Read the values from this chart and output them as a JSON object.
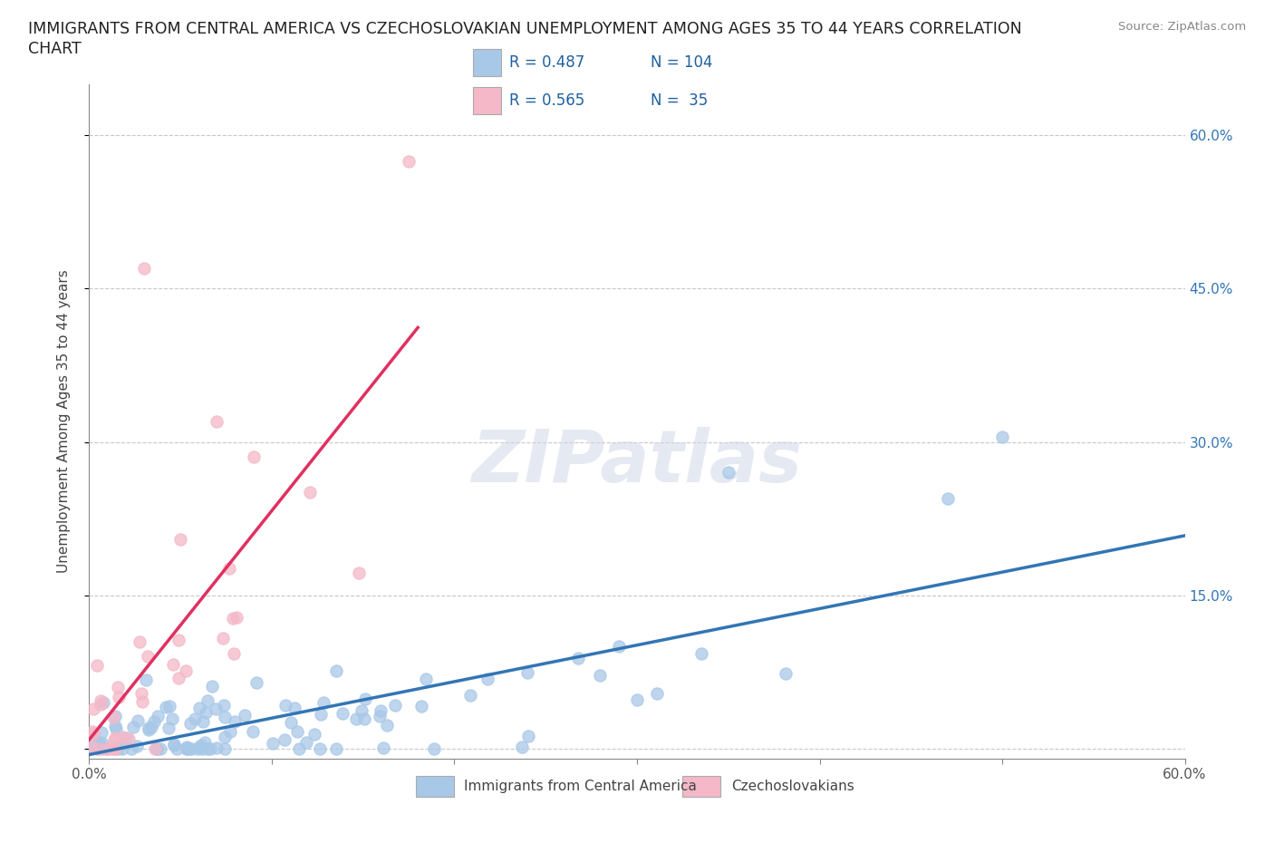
{
  "title_line1": "IMMIGRANTS FROM CENTRAL AMERICA VS CZECHOSLOVAKIAN UNEMPLOYMENT AMONG AGES 35 TO 44 YEARS CORRELATION",
  "title_line2": "CHART",
  "source": "Source: ZipAtlas.com",
  "ylabel": "Unemployment Among Ages 35 to 44 years",
  "xlim": [
    0.0,
    0.6
  ],
  "ylim": [
    -0.01,
    0.65
  ],
  "xticks": [
    0.0,
    0.1,
    0.2,
    0.3,
    0.4,
    0.5,
    0.6
  ],
  "xticklabels": [
    "0.0%",
    "",
    "",
    "",
    "",
    "",
    "60.0%"
  ],
  "ytick_positions": [
    0.0,
    0.15,
    0.3,
    0.45,
    0.6
  ],
  "yticklabels_right": [
    "",
    "15.0%",
    "30.0%",
    "45.0%",
    "60.0%"
  ],
  "blue_R": 0.487,
  "blue_N": 104,
  "pink_R": 0.565,
  "pink_N": 35,
  "blue_color": "#a8c8e8",
  "pink_color": "#f4b8c8",
  "blue_line_color": "#3375b5",
  "pink_line_color": "#e03060",
  "legend_label_blue": "Immigrants from Central America",
  "legend_label_pink": "Czechoslovakians",
  "watermark": "ZIPatlas",
  "background_color": "#ffffff",
  "grid_color": "#c8c8c8"
}
